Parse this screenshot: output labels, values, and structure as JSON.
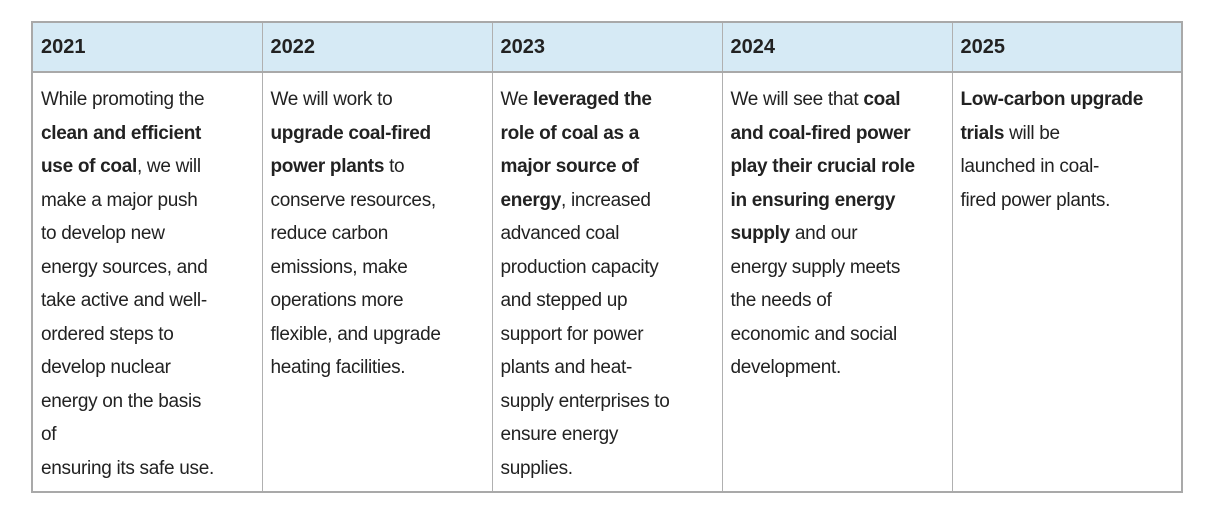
{
  "table": {
    "headers": [
      "2021",
      "2022",
      "2023",
      "2024",
      "2025"
    ],
    "cells": [
      [
        [
          {
            "t": "While promoting the",
            "b": false
          }
        ],
        [
          {
            "t": "clean and efficient",
            "b": true
          }
        ],
        [
          {
            "t": "use of coal",
            "b": true
          },
          {
            "t": ", we will",
            "b": false
          }
        ],
        [
          {
            "t": "make a major push",
            "b": false
          }
        ],
        [
          {
            "t": "to develop new",
            "b": false
          }
        ],
        [
          {
            "t": "energy sources, and",
            "b": false
          }
        ],
        [
          {
            "t": "take active and well-",
            "b": false
          }
        ],
        [
          {
            "t": "ordered steps to",
            "b": false
          }
        ],
        [
          {
            "t": "develop nuclear",
            "b": false
          }
        ],
        [
          {
            "t": "energy on the basis",
            "b": false
          }
        ],
        [
          {
            "t": "of",
            "b": false
          }
        ],
        [
          {
            "t": "ensuring its safe use.",
            "b": false
          }
        ]
      ],
      [
        [
          {
            "t": "We will work to",
            "b": false
          }
        ],
        [
          {
            "t": "upgrade coal-fired",
            "b": true
          }
        ],
        [
          {
            "t": "power plants",
            "b": true
          },
          {
            "t": " to",
            "b": false
          }
        ],
        [
          {
            "t": "conserve resources,",
            "b": false
          }
        ],
        [
          {
            "t": "reduce carbon",
            "b": false
          }
        ],
        [
          {
            "t": "emissions, make",
            "b": false
          }
        ],
        [
          {
            "t": "operations more",
            "b": false
          }
        ],
        [
          {
            "t": "flexible, and upgrade",
            "b": false
          }
        ],
        [
          {
            "t": "heating facilities.",
            "b": false
          }
        ]
      ],
      [
        [
          {
            "t": "We ",
            "b": false
          },
          {
            "t": "leveraged the",
            "b": true
          }
        ],
        [
          {
            "t": "role of coal as a",
            "b": true
          }
        ],
        [
          {
            "t": "major source of",
            "b": true
          }
        ],
        [
          {
            "t": "energy",
            "b": true
          },
          {
            "t": ", increased",
            "b": false
          }
        ],
        [
          {
            "t": "advanced coal",
            "b": false
          }
        ],
        [
          {
            "t": "production capacity",
            "b": false
          }
        ],
        [
          {
            "t": "and stepped up",
            "b": false
          }
        ],
        [
          {
            "t": "support for power",
            "b": false
          }
        ],
        [
          {
            "t": "plants and heat-",
            "b": false
          }
        ],
        [
          {
            "t": "supply enterprises to",
            "b": false
          }
        ],
        [
          {
            "t": "ensure energy",
            "b": false
          }
        ],
        [
          {
            "t": "supplies.",
            "b": false
          }
        ]
      ],
      [
        [
          {
            "t": "We will see that ",
            "b": false
          },
          {
            "t": "coal",
            "b": true
          }
        ],
        [
          {
            "t": "and coal-fired power",
            "b": true
          }
        ],
        [
          {
            "t": "play their crucial role",
            "b": true
          }
        ],
        [
          {
            "t": "in ensuring energy",
            "b": true
          }
        ],
        [
          {
            "t": "supply",
            "b": true
          },
          {
            "t": " and our",
            "b": false
          }
        ],
        [
          {
            "t": "energy supply meets",
            "b": false
          }
        ],
        [
          {
            "t": "the needs of",
            "b": false
          }
        ],
        [
          {
            "t": "economic and social",
            "b": false
          }
        ],
        [
          {
            "t": "development.",
            "b": false
          }
        ]
      ],
      [
        [
          {
            "t": "Low-carbon upgrade",
            "b": true
          }
        ],
        [
          {
            "t": "trials",
            "b": true
          },
          {
            "t": " will be",
            "b": false
          }
        ],
        [
          {
            "t": "launched in coal-",
            "b": false
          }
        ],
        [
          {
            "t": "fired power plants.",
            "b": false
          }
        ]
      ]
    ]
  },
  "colors": {
    "header_bg": "#d6eaf5",
    "border": "#a9a9a9",
    "text": "#222222"
  }
}
